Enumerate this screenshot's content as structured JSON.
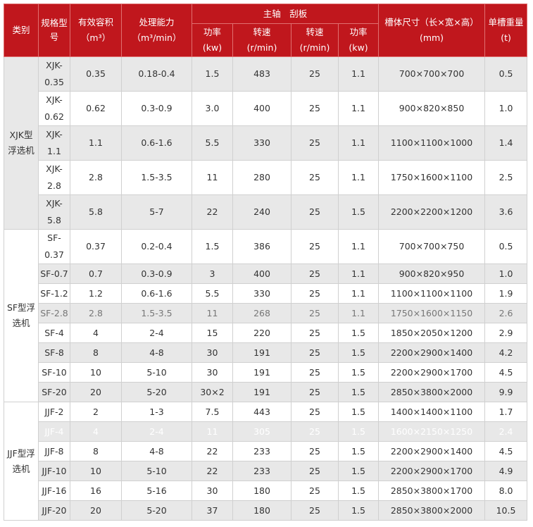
{
  "header": {
    "category": "类别",
    "model": "规格型号",
    "volume": "有效容积",
    "volume_unit": "（m³）",
    "capacity": "处理能力",
    "capacity_unit": "（m³/min）",
    "group": "主轴　刮板",
    "shaft_power": "功率",
    "shaft_power_unit": "(kw)",
    "shaft_speed": "转速",
    "shaft_speed_unit": "(r/min)",
    "scraper_speed": "转速",
    "scraper_speed_unit": "(r/min)",
    "scraper_power": "功率",
    "scraper_power_unit": "(kw)",
    "size": "槽体尺寸（长×宽×高）",
    "size_unit": "(mm)",
    "weight": "单槽重量",
    "weight_unit": "(t)"
  },
  "colors": {
    "header_bg": "#c0171d",
    "row_alt": "#e8e8e8"
  },
  "groups": [
    {
      "category": "XJK型浮选机",
      "rows": [
        [
          "XJK-0.35",
          "0.35",
          "0.18-0.4",
          "1.5",
          "483",
          "25",
          "1.1",
          "700×700×700",
          "0.5"
        ],
        [
          "XJK-0.62",
          "0.62",
          "0.3-0.9",
          "3.0",
          "400",
          "25",
          "1.1",
          "900×820×850",
          "1.0"
        ],
        [
          "XJK-1.1",
          "1.1",
          "0.6-1.6",
          "5.5",
          "330",
          "25",
          "1.1",
          "1100×1100×1000",
          "1.4"
        ],
        [
          "XJK-2.8",
          "2.8",
          "1.5-3.5",
          "11",
          "280",
          "25",
          "1.1",
          "1750×1600×1100",
          "2.5"
        ],
        [
          "XJK-5.8",
          "5.8",
          "5-7",
          "22",
          "240",
          "25",
          "1.5",
          "2200×2200×1200",
          "3.6"
        ]
      ]
    },
    {
      "category": "SF型浮选机",
      "rows": [
        [
          "SF-0.37",
          "0.37",
          "0.2-0.4",
          "1.5",
          "386",
          "25",
          "1.1",
          "700×700×750",
          "0.5"
        ],
        [
          "SF-0.7",
          "0.7",
          "0.3-0.9",
          "3",
          "400",
          "25",
          "1.1",
          "900×820×950",
          "1.0"
        ],
        [
          "SF-1.2",
          "1.2",
          "0.6-1.6",
          "5.5",
          "330",
          "25",
          "1.1",
          "1100×1100×1100",
          "1.9"
        ],
        [
          "SF-2.8",
          "2.8",
          "1.5-3.5",
          "11",
          "268",
          "25",
          "1.1",
          "1750×1600×1150",
          "2.6"
        ],
        [
          "SF-4",
          "4",
          "2-4",
          "15",
          "220",
          "25",
          "1.5",
          "1850×2050×1200",
          "2.9"
        ],
        [
          "SF-8",
          "8",
          "4-8",
          "30",
          "191",
          "25",
          "1.5",
          "2200×2900×1400",
          "4.2"
        ],
        [
          "SF-10",
          "10",
          "5-10",
          "30",
          "191",
          "25",
          "1.5",
          "2200×2900×1700",
          "4.5"
        ],
        [
          "SF-20",
          "20",
          "5-20",
          "30×2",
          "191",
          "25",
          "1.5",
          "2850×3800×2000",
          "9.9"
        ]
      ]
    },
    {
      "category": "JJF型浮选机",
      "rows": [
        [
          "JJF-2",
          "2",
          "1-3",
          "7.5",
          "443",
          "25",
          "1.5",
          "1400×1400×1100",
          "1.7"
        ],
        [
          "JJF-4",
          "4",
          "2-4",
          "11",
          "305",
          "25",
          "1.5",
          "1600×2150×1250",
          "2.4"
        ],
        [
          "JJF-8",
          "8",
          "4-8",
          "22",
          "233",
          "25",
          "1.5",
          "2200×2900×1400",
          "4.5"
        ],
        [
          "JJF-10",
          "10",
          "5-10",
          "22",
          "233",
          "25",
          "1.5",
          "2200×2900×1700",
          "4.9"
        ],
        [
          "JJF-16",
          "16",
          "5-16",
          "30",
          "180",
          "25",
          "1.5",
          "2850×3800×1700",
          "8.0"
        ],
        [
          "JJF-20",
          "20",
          "5-20",
          "37",
          "180",
          "25",
          "1.5",
          "2850×3800×2000",
          "10.5"
        ]
      ]
    }
  ]
}
